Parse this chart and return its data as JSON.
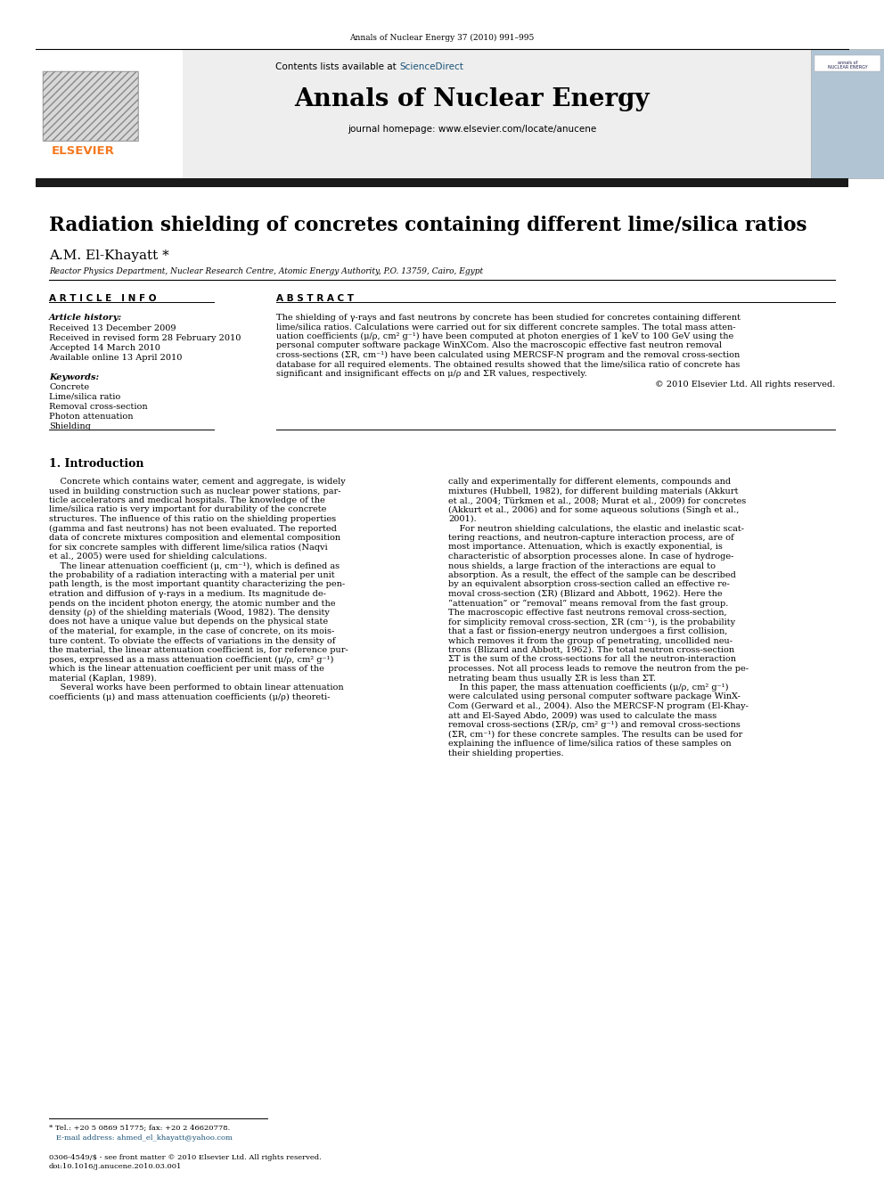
{
  "journal_ref": "Annals of Nuclear Energy 37 (2010) 991–995",
  "contents_line": "Contents lists available at ScienceDirect",
  "sciencedirect_color": "#1a5276",
  "journal_name": "Annals of Nuclear Energy",
  "journal_homepage": "journal homepage: www.elsevier.com/locate/anucene",
  "elsevier_color": "#f47920",
  "title": "Radiation shielding of concretes containing different lime/silica ratios",
  "author": "A.M. El-Khayatt *",
  "affiliation": "Reactor Physics Department, Nuclear Research Centre, Atomic Energy Authority, P.O. 13759, Cairo, Egypt",
  "article_info_header": "A R T I C L E   I N F O",
  "abstract_header": "A B S T R A C T",
  "article_history_label": "Article history:",
  "received1": "Received 13 December 2009",
  "received2": "Received in revised form 28 February 2010",
  "accepted": "Accepted 14 March 2010",
  "available": "Available online 13 April 2010",
  "keywords_label": "Keywords:",
  "keywords": [
    "Concrete",
    "Lime/silica ratio",
    "Removal cross-section",
    "Photon attenuation",
    "Shielding"
  ],
  "copyright": "© 2010 Elsevier Ltd. All rights reserved.",
  "intro_header": "1. Introduction",
  "footnote_line1": "* Tel.: +20 5 0869 51775; fax: +20 2 46620778.",
  "footnote_line2": "   E-mail address: ahmed_el_khayatt@yahoo.com",
  "footer_left1": "0306-4549/$ - see front matter © 2010 Elsevier Ltd. All rights reserved.",
  "footer_left2": "doi:10.1016/j.anucene.2010.03.001",
  "bg_color": "#ffffff",
  "black_bar_color": "#1a1a1a",
  "link_color": "#1a5276",
  "abstract_lines": [
    "The shielding of γ-rays and fast neutrons by concrete has been studied for concretes containing different",
    "lime/silica ratios. Calculations were carried out for six different concrete samples. The total mass atten-",
    "uation coefficients (μ/ρ, cm² g⁻¹) have been computed at photon energies of 1 keV to 100 GeV using the",
    "personal computer software package WinXCom. Also the macroscopic effective fast neutron removal",
    "cross-sections (ΣR, cm⁻¹) have been calculated using MERCSF-N program and the removal cross-section",
    "database for all required elements. The obtained results showed that the lime/silica ratio of concrete has",
    "significant and insignificant effects on μ/ρ and ΣR values, respectively."
  ],
  "col1_text": [
    "    Concrete which contains water, cement and aggregate, is widely",
    "used in building construction such as nuclear power stations, par-",
    "ticle accelerators and medical hospitals. The knowledge of the",
    "lime/silica ratio is very important for durability of the concrete",
    "structures. The influence of this ratio on the shielding properties",
    "(gamma and fast neutrons) has not been evaluated. The reported",
    "data of concrete mixtures composition and elemental composition",
    "for six concrete samples with different lime/silica ratios (Naqvi",
    "et al., 2005) were used for shielding calculations.",
    "    The linear attenuation coefficient (μ, cm⁻¹), which is defined as",
    "the probability of a radiation interacting with a material per unit",
    "path length, is the most important quantity characterizing the pen-",
    "etration and diffusion of γ-rays in a medium. Its magnitude de-",
    "pends on the incident photon energy, the atomic number and the",
    "density (ρ) of the shielding materials (Wood, 1982). The density",
    "does not have a unique value but depends on the physical state",
    "of the material, for example, in the case of concrete, on its mois-",
    "ture content. To obviate the effects of variations in the density of",
    "the material, the linear attenuation coefficient is, for reference pur-",
    "poses, expressed as a mass attenuation coefficient (μ/ρ, cm² g⁻¹)",
    "which is the linear attenuation coefficient per unit mass of the",
    "material (Kaplan, 1989).",
    "    Several works have been performed to obtain linear attenuation",
    "coefficients (μ) and mass attenuation coefficients (μ/ρ) theoreti-"
  ],
  "col2_text": [
    "cally and experimentally for different elements, compounds and",
    "mixtures (Hubbell, 1982), for different building materials (Akkurt",
    "et al., 2004; Türkmen et al., 2008; Murat et al., 2009) for concretes",
    "(Akkurt et al., 2006) and for some aqueous solutions (Singh et al.,",
    "2001).",
    "    For neutron shielding calculations, the elastic and inelastic scat-",
    "tering reactions, and neutron-capture interaction process, are of",
    "most importance. Attenuation, which is exactly exponential, is",
    "characteristic of absorption processes alone. In case of hydroge-",
    "nous shields, a large fraction of the interactions are equal to",
    "absorption. As a result, the effect of the sample can be described",
    "by an equivalent absorption cross-section called an effective re-",
    "moval cross-section (ΣR) (Blizard and Abbott, 1962). Here the",
    "“attenuation” or “removal” means removal from the fast group.",
    "The macroscopic effective fast neutrons removal cross-section,",
    "for simplicity removal cross-section, ΣR (cm⁻¹), is the probability",
    "that a fast or fission-energy neutron undergoes a first collision,",
    "which removes it from the group of penetrating, uncollided neu-",
    "trons (Blizard and Abbott, 1962). The total neutron cross-section",
    "ΣT is the sum of the cross-sections for all the neutron-interaction",
    "processes. Not all process leads to remove the neutron from the pe-",
    "netrating beam thus usually ΣR is less than ΣT.",
    "    In this paper, the mass attenuation coefficients (μ/ρ, cm² g⁻¹)",
    "were calculated using personal computer software package WinX-",
    "Com (Gerward et al., 2004). Also the MERCSF-N program (El-Khay-",
    "att and El-Sayed Abdo, 2009) was used to calculate the mass",
    "removal cross-sections (ΣR/ρ, cm² g⁻¹) and removal cross-sections",
    "(ΣR, cm⁻¹) for these concrete samples. The results can be used for",
    "explaining the influence of lime/silica ratios of these samples on",
    "their shielding properties."
  ]
}
